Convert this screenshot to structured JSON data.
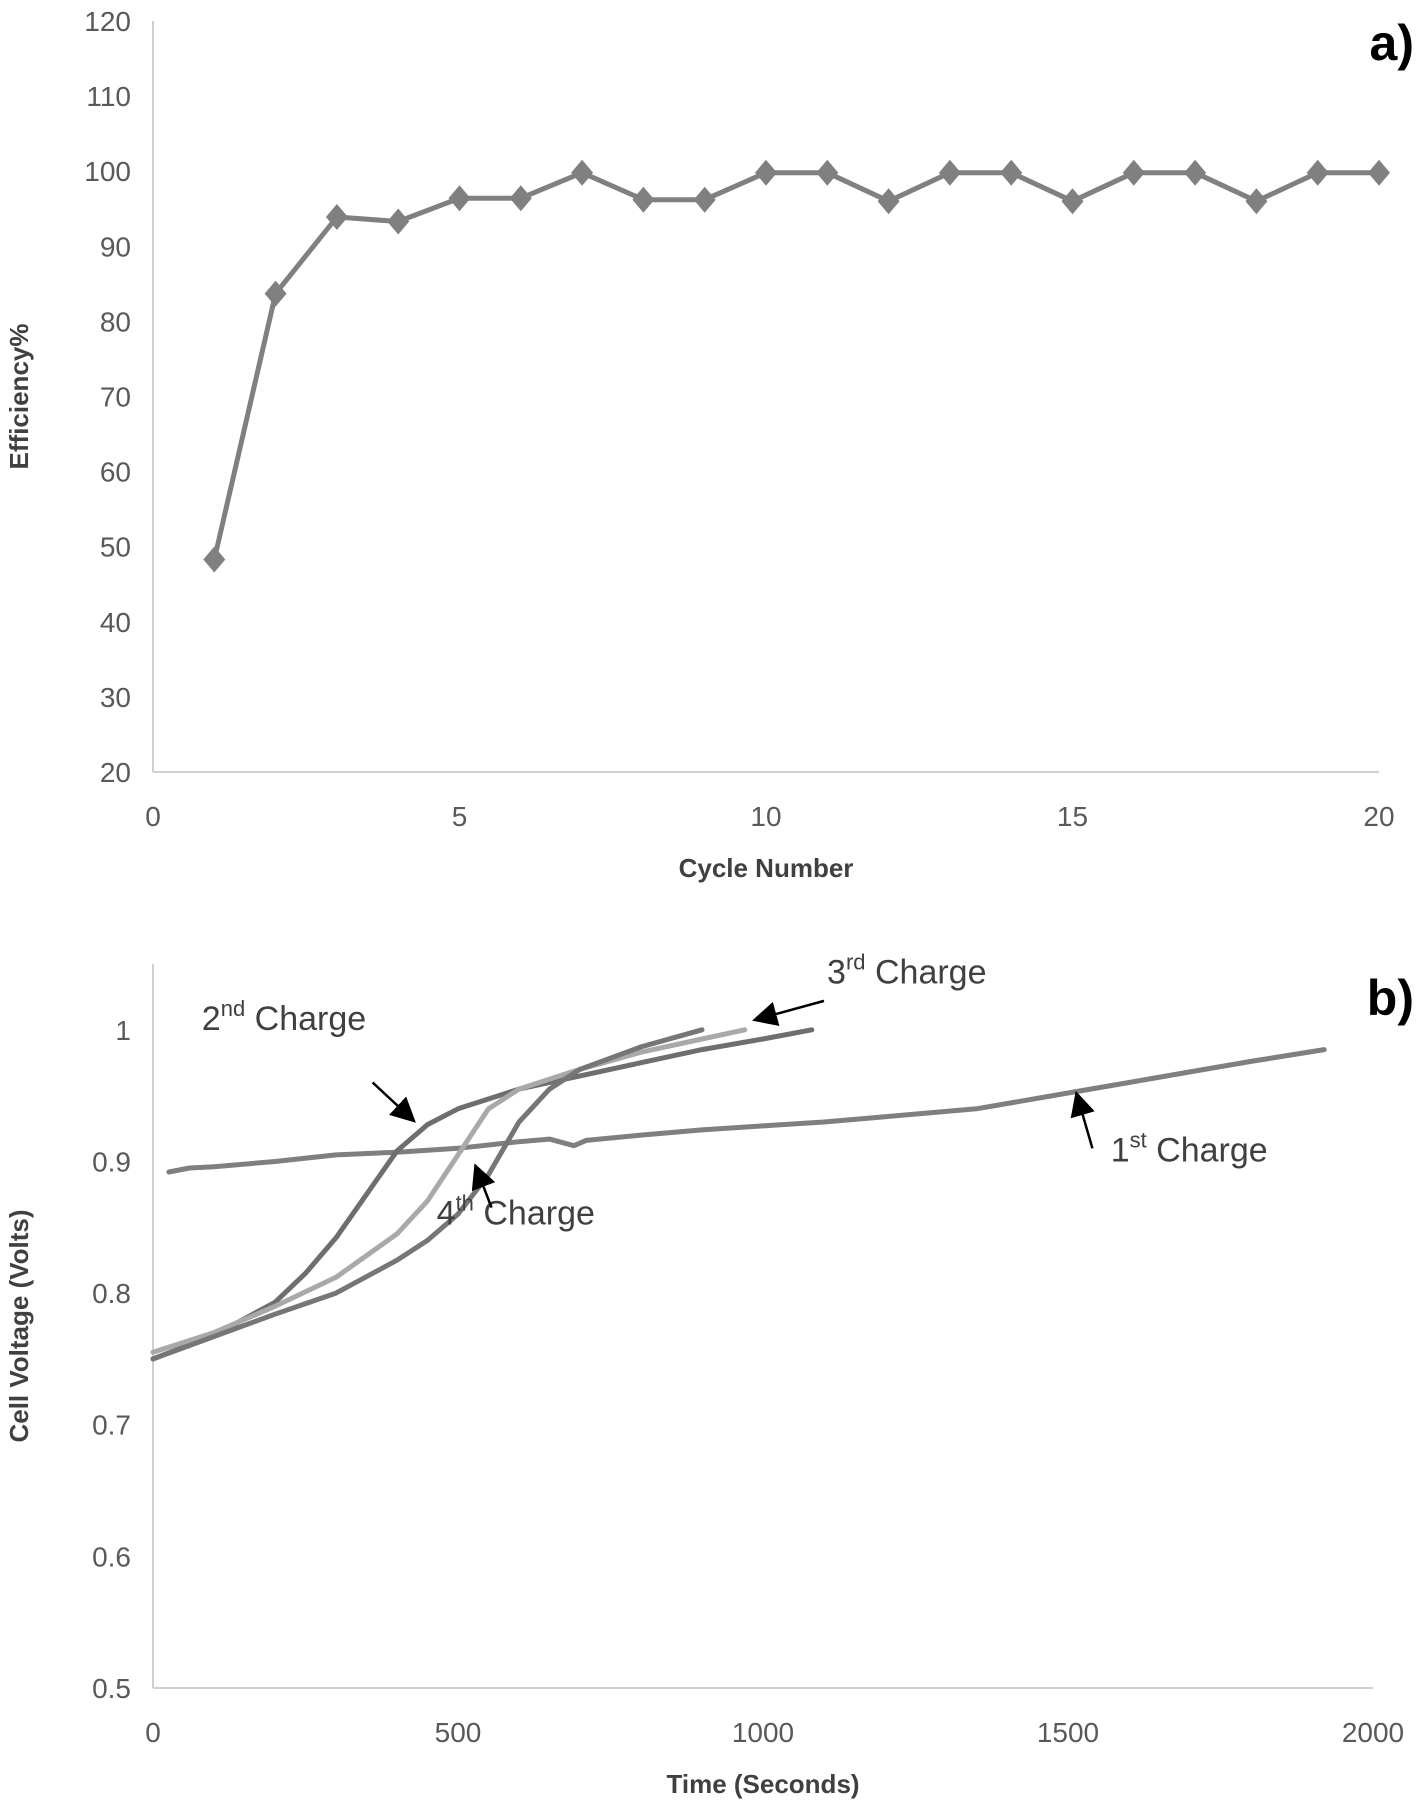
{
  "chart_data": [
    {
      "type": "line",
      "panel_label": "a)",
      "xlabel": "Cycle Number",
      "ylabel": "Efficiency%",
      "xlim": [
        0,
        20
      ],
      "ylim": [
        20,
        120
      ],
      "xticks": [
        "0",
        "5",
        "10",
        "15",
        "20"
      ],
      "yticks": [
        "20",
        "30",
        "40",
        "50",
        "60",
        "70",
        "80",
        "90",
        "100",
        "110",
        "120"
      ],
      "grid": false,
      "series": [
        {
          "name": "Efficiency",
          "color": "#808080",
          "marker": "diamond",
          "x": [
            1,
            2,
            3,
            4,
            5,
            6,
            7,
            8,
            9,
            10,
            11,
            12,
            13,
            14,
            15,
            16,
            17,
            18,
            19,
            20
          ],
          "y": [
            48.3,
            83.7,
            93.9,
            93.3,
            96.4,
            96.4,
            99.8,
            96.2,
            96.2,
            99.8,
            99.8,
            96.0,
            99.8,
            99.8,
            96.0,
            99.8,
            99.8,
            96.0,
            99.8,
            99.8
          ]
        }
      ]
    },
    {
      "type": "line",
      "panel_label": "b)",
      "xlabel": "Time (Seconds)",
      "ylabel": "Cell Voltage (Volts)",
      "xlim": [
        0,
        2000
      ],
      "ylim": [
        0.5,
        1.05
      ],
      "xticks": [
        "0",
        "500",
        "1000",
        "1500",
        "2000"
      ],
      "yticks": [
        "0.5",
        "0.6",
        "0.7",
        "0.8",
        "0.9",
        "1"
      ],
      "grid": false,
      "series": [
        {
          "name": "1st Charge",
          "color": "#7f7f7f",
          "x": [
            26,
            60,
            100,
            200,
            300,
            400,
            500,
            600,
            650,
            690,
            710,
            800,
            900,
            1000,
            1100,
            1200,
            1350,
            1500,
            1600,
            1700,
            1800,
            1920
          ],
          "y": [
            0.892,
            0.895,
            0.896,
            0.9,
            0.905,
            0.907,
            0.91,
            0.915,
            0.917,
            0.912,
            0.916,
            0.92,
            0.924,
            0.927,
            0.93,
            0.934,
            0.94,
            0.952,
            0.96,
            0.968,
            0.976,
            0.985
          ]
        },
        {
          "name": "2nd Charge",
          "color": "#6e6e6e",
          "x": [
            0,
            100,
            200,
            250,
            300,
            350,
            400,
            450,
            500,
            600,
            700,
            800,
            900,
            1000,
            1080
          ],
          "y": [
            0.75,
            0.768,
            0.793,
            0.815,
            0.842,
            0.875,
            0.908,
            0.928,
            0.94,
            0.955,
            0.965,
            0.975,
            0.985,
            0.993,
            1.0
          ]
        },
        {
          "name": "3rd Charge",
          "color": "#a9a9a9",
          "x": [
            0,
            100,
            200,
            300,
            400,
            450,
            500,
            550,
            600,
            700,
            800,
            900,
            970
          ],
          "y": [
            0.755,
            0.77,
            0.79,
            0.812,
            0.845,
            0.87,
            0.905,
            0.94,
            0.955,
            0.97,
            0.983,
            0.993,
            1.0
          ]
        },
        {
          "name": "4th Charge",
          "color": "#767676",
          "x": [
            0,
            100,
            200,
            300,
            400,
            450,
            500,
            550,
            600,
            650,
            700,
            800,
            900
          ],
          "y": [
            0.75,
            0.767,
            0.784,
            0.8,
            0.825,
            0.84,
            0.86,
            0.89,
            0.93,
            0.955,
            0.97,
            0.987,
            1.0
          ]
        }
      ],
      "annotations": [
        {
          "num": "2",
          "sup": "nd",
          "text": "Charge",
          "at": [
            80,
            1.0
          ],
          "arrow_from": [
            360,
            0.96
          ],
          "arrow_to": [
            425,
            0.932
          ]
        },
        {
          "num": "3",
          "sup": "rd",
          "text": "Charge",
          "at": [
            1105,
            1.035
          ],
          "arrow_from": [
            1100,
            1.022
          ],
          "arrow_to": [
            990,
            1.008
          ]
        },
        {
          "num": "4",
          "sup": "th",
          "text": "Charge",
          "at": [
            465,
            0.852
          ],
          "arrow_from": [
            555,
            0.865
          ],
          "arrow_to": [
            530,
            0.895
          ]
        },
        {
          "num": "1",
          "sup": "st",
          "text": "Charge",
          "at": [
            1570,
            0.9
          ],
          "arrow_from": [
            1540,
            0.91
          ],
          "arrow_to": [
            1515,
            0.95
          ]
        }
      ]
    }
  ]
}
